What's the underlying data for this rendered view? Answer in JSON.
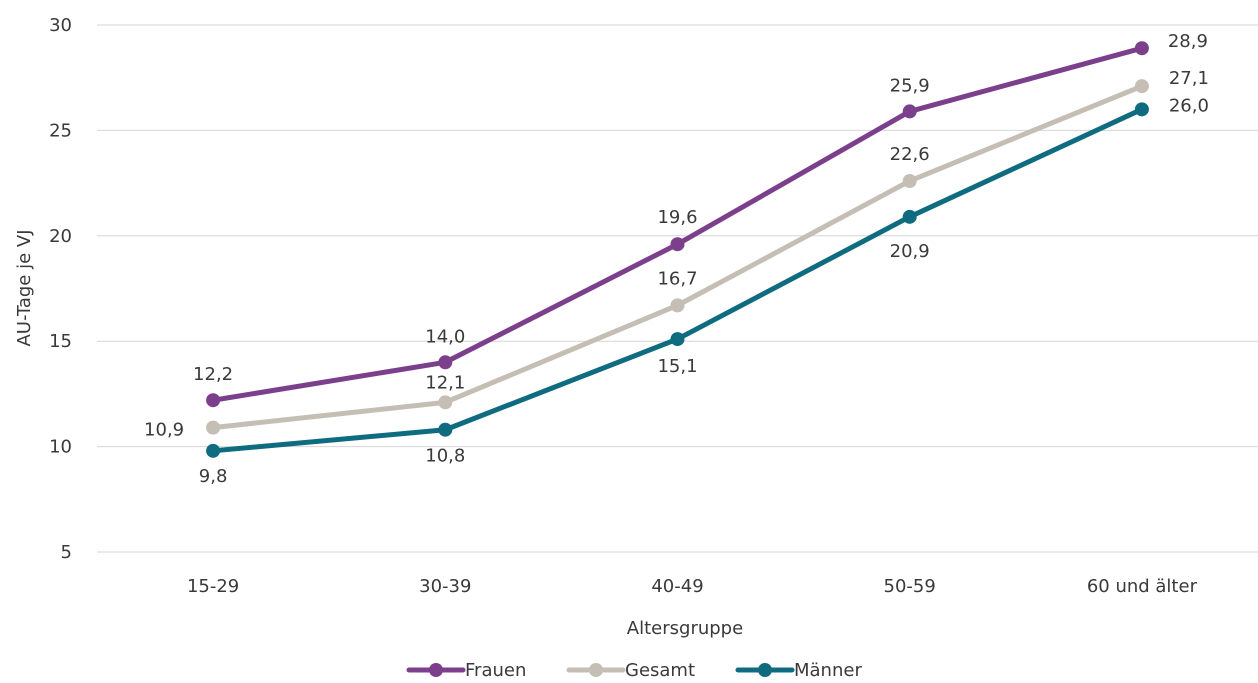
{
  "chart_data": {
    "type": "line",
    "xlabel": "Altersgruppe",
    "ylabel": "AU-Tage je VJ",
    "categories": [
      "15-29",
      "30-39",
      "40-49",
      "50-59",
      "60 und älter"
    ],
    "ylim": [
      5,
      30
    ],
    "yticks": [
      "5",
      "10",
      "15",
      "20",
      "25",
      "30"
    ],
    "grid": true,
    "legend_position": "bottom",
    "series": [
      {
        "name": "Frauen",
        "color": "#7b3f8c",
        "values": [
          12.2,
          14.0,
          19.6,
          25.9,
          28.9
        ],
        "labels": [
          "12,2",
          "14,0",
          "19,6",
          "25,9",
          "28,9"
        ]
      },
      {
        "name": "Gesamt",
        "color": "#c5beb5",
        "values": [
          10.9,
          12.1,
          16.7,
          22.6,
          27.1
        ],
        "labels": [
          "10,9",
          "12,1",
          "16,7",
          "22,6",
          "27,1"
        ]
      },
      {
        "name": "Männer",
        "color": "#0f6b80",
        "values": [
          9.8,
          10.8,
          15.1,
          20.9,
          26.0
        ],
        "labels": [
          "9,8",
          "10,8",
          "15,1",
          "20,9",
          "26,0"
        ]
      }
    ]
  }
}
